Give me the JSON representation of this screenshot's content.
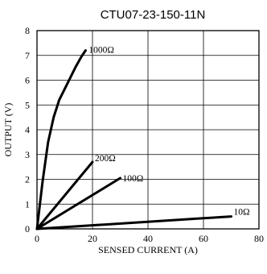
{
  "chart_data": {
    "type": "line",
    "title": "CTU07-23-150-11N",
    "xlabel": "SENSED CURRENT (A)",
    "ylabel": "OUTPUT (V)",
    "xlim": [
      0,
      80
    ],
    "ylim": [
      0,
      8
    ],
    "x_ticks": [
      "0",
      "20",
      "40",
      "60",
      "80"
    ],
    "y_ticks": [
      "0",
      "1",
      "2",
      "3",
      "4",
      "5",
      "6",
      "7",
      "8"
    ],
    "grid": true,
    "series": [
      {
        "name": "1000Ω",
        "x": [
          0,
          2,
          4,
          6,
          8,
          10,
          12,
          14,
          16,
          17.5
        ],
        "y": [
          0,
          1.9,
          3.5,
          4.5,
          5.2,
          5.65,
          6.1,
          6.55,
          6.95,
          7.2
        ]
      },
      {
        "name": "200Ω",
        "x": [
          0,
          20
        ],
        "y": [
          0,
          2.7
        ]
      },
      {
        "name": "100Ω",
        "x": [
          0,
          30
        ],
        "y": [
          0,
          2.05
        ]
      },
      {
        "name": "10Ω",
        "x": [
          0,
          70
        ],
        "y": [
          0,
          0.5
        ]
      }
    ]
  }
}
